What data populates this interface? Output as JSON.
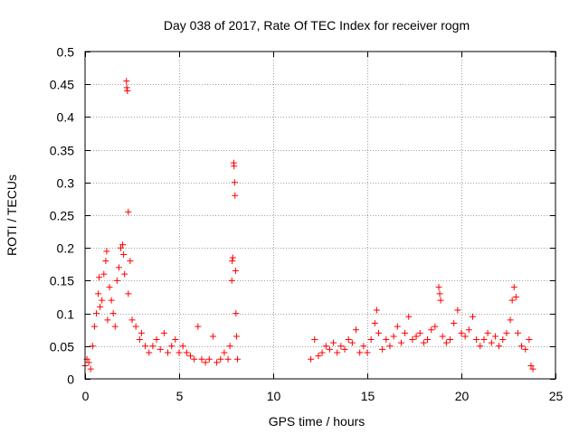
{
  "chart_data": {
    "type": "scatter",
    "title": "Day 038 of 2017, Rate Of TEC Index for receiver rogm",
    "xlabel": "GPS time / hours",
    "ylabel": "ROTI / TECUs",
    "xlim": [
      0,
      25
    ],
    "ylim": [
      0,
      0.5
    ],
    "x_ticks": [
      0,
      5,
      10,
      15,
      20,
      25
    ],
    "y_ticks": [
      0,
      0.05,
      0.1,
      0.15,
      0.2,
      0.25,
      0.3,
      0.35,
      0.4,
      0.45,
      0.5
    ],
    "x_tick_labels": [
      "0",
      "5",
      "10",
      "15",
      "20",
      "25"
    ],
    "y_tick_labels": [
      "0",
      "0.05",
      "0.1",
      "0.15",
      "0.2",
      "0.25",
      "0.3",
      "0.35",
      "0.4",
      "0.45",
      "0.5"
    ],
    "grid": true,
    "marker": "+",
    "color": "#ff0000",
    "series": [
      {
        "points": [
          [
            0.0,
            0.02
          ],
          [
            0.1,
            0.03
          ],
          [
            0.2,
            0.025
          ],
          [
            0.3,
            0.015
          ],
          [
            0.4,
            0.05
          ],
          [
            0.5,
            0.08
          ],
          [
            0.6,
            0.1
          ],
          [
            0.7,
            0.13
          ],
          [
            0.75,
            0.155
          ],
          [
            0.8,
            0.11
          ],
          [
            0.9,
            0.12
          ],
          [
            1.0,
            0.16
          ],
          [
            1.1,
            0.18
          ],
          [
            1.15,
            0.195
          ],
          [
            1.2,
            0.09
          ],
          [
            1.3,
            0.14
          ],
          [
            1.4,
            0.12
          ],
          [
            1.5,
            0.1
          ],
          [
            1.6,
            0.08
          ],
          [
            1.7,
            0.15
          ],
          [
            1.8,
            0.17
          ],
          [
            1.9,
            0.2
          ],
          [
            2.0,
            0.205
          ],
          [
            2.05,
            0.19
          ],
          [
            2.1,
            0.16
          ],
          [
            2.2,
            0.455
          ],
          [
            2.22,
            0.445
          ],
          [
            2.25,
            0.44
          ],
          [
            2.3,
            0.255
          ],
          [
            2.3,
            0.13
          ],
          [
            2.4,
            0.18
          ],
          [
            2.5,
            0.09
          ],
          [
            2.7,
            0.08
          ],
          [
            2.9,
            0.06
          ],
          [
            3.0,
            0.07
          ],
          [
            3.2,
            0.05
          ],
          [
            3.4,
            0.04
          ],
          [
            3.6,
            0.05
          ],
          [
            3.8,
            0.06
          ],
          [
            4.0,
            0.045
          ],
          [
            4.2,
            0.07
          ],
          [
            4.4,
            0.04
          ],
          [
            4.6,
            0.05
          ],
          [
            4.8,
            0.06
          ],
          [
            5.0,
            0.04
          ],
          [
            5.2,
            0.05
          ],
          [
            5.4,
            0.04
          ],
          [
            5.6,
            0.035
          ],
          [
            5.8,
            0.03
          ],
          [
            6.0,
            0.08
          ],
          [
            6.2,
            0.03
          ],
          [
            6.4,
            0.025
          ],
          [
            6.6,
            0.03
          ],
          [
            6.8,
            0.065
          ],
          [
            7.0,
            0.025
          ],
          [
            7.2,
            0.03
          ],
          [
            7.4,
            0.04
          ],
          [
            7.6,
            0.03
          ],
          [
            7.7,
            0.05
          ],
          [
            7.8,
            0.15
          ],
          [
            7.82,
            0.18
          ],
          [
            7.85,
            0.185
          ],
          [
            7.9,
            0.33
          ],
          [
            7.92,
            0.325
          ],
          [
            7.95,
            0.3
          ],
          [
            7.97,
            0.28
          ],
          [
            8.0,
            0.165
          ],
          [
            8.02,
            0.1
          ],
          [
            8.05,
            0.065
          ],
          [
            8.1,
            0.03
          ],
          [
            12.0,
            0.03
          ],
          [
            12.2,
            0.06
          ],
          [
            12.4,
            0.035
          ],
          [
            12.6,
            0.04
          ],
          [
            12.8,
            0.05
          ],
          [
            13.0,
            0.045
          ],
          [
            13.2,
            0.055
          ],
          [
            13.4,
            0.04
          ],
          [
            13.6,
            0.05
          ],
          [
            13.8,
            0.045
          ],
          [
            14.0,
            0.06
          ],
          [
            14.2,
            0.055
          ],
          [
            14.4,
            0.075
          ],
          [
            14.6,
            0.04
          ],
          [
            14.8,
            0.05
          ],
          [
            15.0,
            0.04
          ],
          [
            15.2,
            0.06
          ],
          [
            15.4,
            0.085
          ],
          [
            15.5,
            0.105
          ],
          [
            15.6,
            0.07
          ],
          [
            15.8,
            0.045
          ],
          [
            16.0,
            0.06
          ],
          [
            16.2,
            0.05
          ],
          [
            16.4,
            0.065
          ],
          [
            16.6,
            0.08
          ],
          [
            16.8,
            0.055
          ],
          [
            17.0,
            0.07
          ],
          [
            17.2,
            0.095
          ],
          [
            17.4,
            0.06
          ],
          [
            17.6,
            0.065
          ],
          [
            17.8,
            0.07
          ],
          [
            18.0,
            0.055
          ],
          [
            18.2,
            0.06
          ],
          [
            18.4,
            0.075
          ],
          [
            18.6,
            0.08
          ],
          [
            18.8,
            0.14
          ],
          [
            18.85,
            0.13
          ],
          [
            18.9,
            0.12
          ],
          [
            19.0,
            0.065
          ],
          [
            19.2,
            0.055
          ],
          [
            19.4,
            0.06
          ],
          [
            19.6,
            0.085
          ],
          [
            19.8,
            0.105
          ],
          [
            20.0,
            0.07
          ],
          [
            20.2,
            0.065
          ],
          [
            20.4,
            0.075
          ],
          [
            20.6,
            0.095
          ],
          [
            20.8,
            0.06
          ],
          [
            21.0,
            0.05
          ],
          [
            21.2,
            0.06
          ],
          [
            21.4,
            0.07
          ],
          [
            21.6,
            0.055
          ],
          [
            21.8,
            0.065
          ],
          [
            22.0,
            0.05
          ],
          [
            22.2,
            0.06
          ],
          [
            22.4,
            0.07
          ],
          [
            22.6,
            0.09
          ],
          [
            22.7,
            0.12
          ],
          [
            22.8,
            0.14
          ],
          [
            22.9,
            0.125
          ],
          [
            23.0,
            0.07
          ],
          [
            23.2,
            0.05
          ],
          [
            23.4,
            0.045
          ],
          [
            23.6,
            0.06
          ],
          [
            23.7,
            0.02
          ],
          [
            23.8,
            0.015
          ]
        ]
      }
    ]
  }
}
